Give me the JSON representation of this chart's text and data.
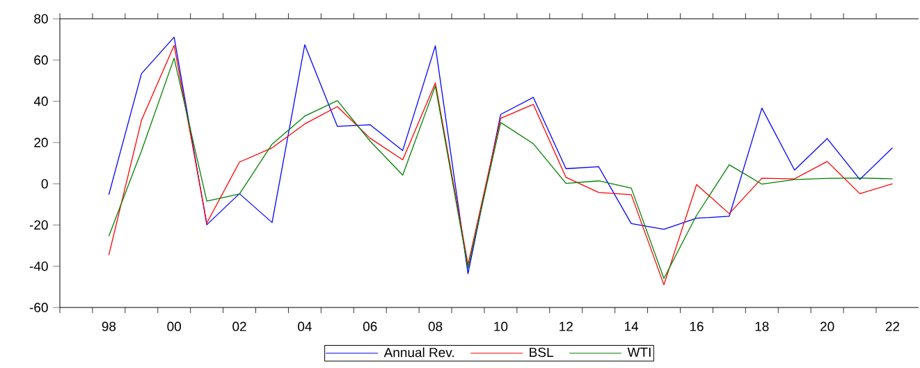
{
  "chart_data": {
    "type": "line",
    "x": [
      1998,
      1999,
      2000,
      2001,
      2002,
      2003,
      2004,
      2005,
      2006,
      2007,
      2008,
      2009,
      2010,
      2011,
      2012,
      2013,
      2014,
      2015,
      2016,
      2017,
      2018,
      2019,
      2020,
      2021,
      2022
    ],
    "series": [
      {
        "name": "Annual Rev.",
        "color": "#0000ff",
        "values": [
          -5.3,
          53.4,
          71.1,
          -19.9,
          -4.8,
          -18.8,
          67.4,
          27.8,
          28.6,
          16.1,
          66.9,
          -43.6,
          33.6,
          41.9,
          7.3,
          8.3,
          -19.3,
          -22.1,
          -16.7,
          -15.8,
          36.7,
          6.6,
          21.9,
          2.1,
          17.4
        ]
      },
      {
        "name": "BSL",
        "color": "#ff0000",
        "values": [
          -34.6,
          30.8,
          67.1,
          -19.1,
          10.5,
          17.4,
          29.0,
          37.4,
          22.1,
          11.6,
          48.9,
          -39.2,
          31.7,
          38.5,
          3.1,
          -4.2,
          -5.3,
          -49.0,
          -0.4,
          -14.5,
          2.7,
          2.4,
          10.8,
          -4.8,
          0.0
        ]
      },
      {
        "name": "WTI",
        "color": "#008000",
        "values": [
          -25.4,
          15.9,
          60.9,
          -8.4,
          -5.0,
          19.2,
          32.8,
          40.3,
          20.7,
          4.2,
          47.4,
          -41.0,
          29.7,
          19.4,
          0.2,
          1.4,
          -2.1,
          -45.9,
          -15.3,
          9.2,
          -0.2,
          2.0,
          2.6,
          2.8,
          2.4
        ]
      }
    ],
    "xlim": [
      1996.5,
      2022.8
    ],
    "xticks": [
      {
        "value": 1996.5,
        "label": null
      },
      {
        "value": 1997.5,
        "label": null
      },
      {
        "value": 1998,
        "label": "98"
      },
      {
        "value": 1998.5,
        "label": null
      },
      {
        "value": 1999.5,
        "label": null
      },
      {
        "value": 2000,
        "label": "00"
      },
      {
        "value": 2000.5,
        "label": null
      },
      {
        "value": 2001.5,
        "label": null
      },
      {
        "value": 2002,
        "label": "02"
      },
      {
        "value": 2002.5,
        "label": null
      },
      {
        "value": 2003.5,
        "label": null
      },
      {
        "value": 2004,
        "label": "04"
      },
      {
        "value": 2004.5,
        "label": null
      },
      {
        "value": 2005.5,
        "label": null
      },
      {
        "value": 2006,
        "label": "06"
      },
      {
        "value": 2006.5,
        "label": null
      },
      {
        "value": 2007.5,
        "label": null
      },
      {
        "value": 2008,
        "label": "08"
      },
      {
        "value": 2008.5,
        "label": null
      },
      {
        "value": 2009.5,
        "label": null
      },
      {
        "value": 2010,
        "label": "10"
      },
      {
        "value": 2010.5,
        "label": null
      },
      {
        "value": 2011.5,
        "label": null
      },
      {
        "value": 2012,
        "label": "12"
      },
      {
        "value": 2012.5,
        "label": null
      },
      {
        "value": 2013.5,
        "label": null
      },
      {
        "value": 2014,
        "label": "14"
      },
      {
        "value": 2014.5,
        "label": null
      },
      {
        "value": 2015.5,
        "label": null
      },
      {
        "value": 2016,
        "label": "16"
      },
      {
        "value": 2016.5,
        "label": null
      },
      {
        "value": 2017.5,
        "label": null
      },
      {
        "value": 2018,
        "label": "18"
      },
      {
        "value": 2018.5,
        "label": null
      },
      {
        "value": 2019.5,
        "label": null
      },
      {
        "value": 2020,
        "label": "20"
      },
      {
        "value": 2020.5,
        "label": null
      },
      {
        "value": 2021.5,
        "label": null
      },
      {
        "value": 2022,
        "label": "22"
      }
    ],
    "ylim": [
      -60,
      80
    ],
    "yticks": [
      -60,
      -40,
      -20,
      0,
      20,
      40,
      60,
      80
    ],
    "grid": false,
    "legend": "bottom",
    "marker": "none",
    "line_style": "solid"
  }
}
